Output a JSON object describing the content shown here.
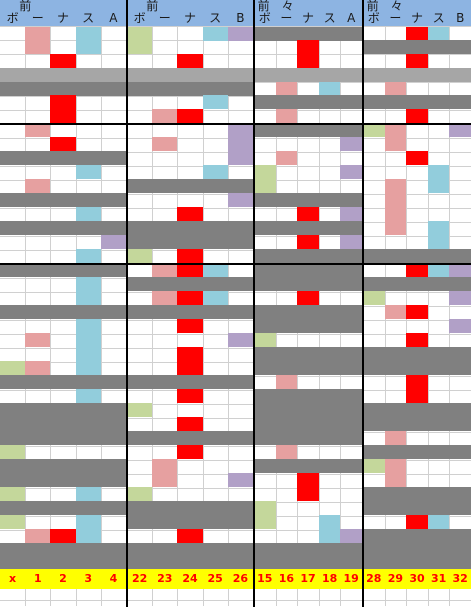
{
  "colors": {
    "gray": "#808080",
    "lightgray": "#a6a6a6",
    "red": "#ff0000",
    "pink": "#e6a0a0",
    "blue": "#92cddc",
    "purple": "#b1a0c7",
    "green": "#c4d79b",
    "header": "#8db4e2",
    "footer": "#ffff00"
  },
  "blocks": [
    {
      "title": "前",
      "letters": [
        "ボ",
        "ー",
        "ナ",
        "ス",
        "A"
      ],
      "footer": [
        "x",
        "1",
        "2",
        "3",
        "4"
      ],
      "cells": [
        [
          27,
          1,
          1,
          "pink"
        ],
        [
          27,
          3,
          1,
          "blue"
        ],
        [
          40,
          1,
          1,
          "pink"
        ],
        [
          40,
          3,
          1,
          "blue"
        ],
        [
          54,
          2,
          1,
          "red"
        ],
        [
          68,
          0,
          5,
          "lightgray"
        ],
        [
          82,
          0,
          5,
          "gray"
        ],
        [
          95,
          2,
          1,
          "red"
        ],
        [
          109,
          2,
          1,
          "red"
        ],
        [
          123,
          1,
          1,
          "pink"
        ],
        [
          137,
          2,
          1,
          "red"
        ],
        [
          151,
          0,
          5,
          "gray"
        ],
        [
          165,
          3,
          1,
          "blue"
        ],
        [
          179,
          1,
          1,
          "pink"
        ],
        [
          193,
          0,
          5,
          "gray"
        ],
        [
          207,
          3,
          1,
          "blue"
        ],
        [
          221,
          0,
          5,
          "gray"
        ],
        [
          235,
          4,
          1,
          "purple"
        ],
        [
          249,
          3,
          1,
          "blue"
        ],
        [
          263,
          0,
          5,
          "gray"
        ],
        [
          277,
          3,
          1,
          "blue"
        ],
        [
          291,
          3,
          1,
          "blue"
        ],
        [
          305,
          0,
          5,
          "gray"
        ],
        [
          319,
          3,
          1,
          "blue"
        ],
        [
          333,
          1,
          1,
          "pink"
        ],
        [
          333,
          3,
          1,
          "blue"
        ],
        [
          347,
          3,
          1,
          "blue"
        ],
        [
          361,
          0,
          1,
          "green"
        ],
        [
          361,
          1,
          1,
          "pink"
        ],
        [
          361,
          3,
          1,
          "blue"
        ],
        [
          375,
          0,
          5,
          "gray"
        ],
        [
          389,
          3,
          1,
          "blue"
        ],
        [
          403,
          0,
          5,
          "gray"
        ],
        [
          417,
          0,
          5,
          "gray"
        ],
        [
          431,
          0,
          5,
          "gray"
        ],
        [
          445,
          0,
          1,
          "green"
        ],
        [
          459,
          0,
          5,
          "gray"
        ],
        [
          473,
          0,
          5,
          "gray"
        ],
        [
          487,
          0,
          1,
          "green"
        ],
        [
          487,
          3,
          1,
          "blue"
        ],
        [
          501,
          0,
          5,
          "gray"
        ],
        [
          515,
          0,
          1,
          "green"
        ],
        [
          515,
          3,
          1,
          "blue"
        ],
        [
          529,
          1,
          1,
          "pink"
        ],
        [
          529,
          2,
          1,
          "red"
        ],
        [
          529,
          3,
          1,
          "blue"
        ],
        [
          543,
          0,
          5,
          "gray"
        ],
        [
          557,
          0,
          5,
          "gray"
        ]
      ]
    },
    {
      "title": "前",
      "letters": [
        "ボ",
        "ー",
        "ナ",
        "ス",
        "B"
      ],
      "footer": [
        "22",
        "23",
        "24",
        "25",
        "26"
      ],
      "cells": [
        [
          27,
          0,
          1,
          "green"
        ],
        [
          27,
          3,
          1,
          "blue"
        ],
        [
          27,
          4,
          1,
          "purple"
        ],
        [
          40,
          0,
          1,
          "green"
        ],
        [
          54,
          2,
          1,
          "red"
        ],
        [
          68,
          0,
          5,
          "lightgray"
        ],
        [
          82,
          0,
          5,
          "gray"
        ],
        [
          95,
          3,
          1,
          "blue"
        ],
        [
          109,
          1,
          1,
          "pink"
        ],
        [
          109,
          2,
          1,
          "red"
        ],
        [
          123,
          4,
          1,
          "purple"
        ],
        [
          137,
          1,
          1,
          "pink"
        ],
        [
          137,
          4,
          1,
          "purple"
        ],
        [
          151,
          4,
          1,
          "purple"
        ],
        [
          165,
          3,
          1,
          "blue"
        ],
        [
          179,
          0,
          5,
          "gray"
        ],
        [
          193,
          4,
          1,
          "purple"
        ],
        [
          207,
          2,
          1,
          "red"
        ],
        [
          221,
          0,
          5,
          "gray"
        ],
        [
          235,
          0,
          5,
          "gray"
        ],
        [
          249,
          0,
          1,
          "green"
        ],
        [
          249,
          2,
          1,
          "red"
        ],
        [
          263,
          1,
          1,
          "pink"
        ],
        [
          263,
          2,
          1,
          "red"
        ],
        [
          263,
          3,
          1,
          "blue"
        ],
        [
          277,
          0,
          5,
          "gray"
        ],
        [
          291,
          1,
          1,
          "pink"
        ],
        [
          291,
          2,
          1,
          "red"
        ],
        [
          291,
          3,
          1,
          "blue"
        ],
        [
          305,
          0,
          5,
          "gray"
        ],
        [
          319,
          2,
          1,
          "red"
        ],
        [
          333,
          4,
          1,
          "purple"
        ],
        [
          347,
          2,
          1,
          "red"
        ],
        [
          361,
          2,
          1,
          "red"
        ],
        [
          375,
          0,
          5,
          "gray"
        ],
        [
          389,
          2,
          1,
          "red"
        ],
        [
          403,
          0,
          1,
          "green"
        ],
        [
          417,
          2,
          1,
          "red"
        ],
        [
          431,
          0,
          5,
          "gray"
        ],
        [
          445,
          2,
          1,
          "red"
        ],
        [
          459,
          1,
          1,
          "pink"
        ],
        [
          473,
          1,
          1,
          "pink"
        ],
        [
          473,
          4,
          1,
          "purple"
        ],
        [
          487,
          0,
          1,
          "green"
        ],
        [
          501,
          0,
          5,
          "gray"
        ],
        [
          515,
          0,
          5,
          "gray"
        ],
        [
          529,
          2,
          1,
          "red"
        ],
        [
          543,
          0,
          5,
          "gray"
        ],
        [
          557,
          0,
          5,
          "gray"
        ]
      ]
    },
    {
      "title": "前　々",
      "letters": [
        "ボ",
        "ー",
        "ナ",
        "ス",
        "A"
      ],
      "footer": [
        "15",
        "16",
        "17",
        "18",
        "19"
      ],
      "cells": [
        [
          27,
          0,
          5,
          "gray"
        ],
        [
          40,
          2,
          1,
          "red"
        ],
        [
          54,
          2,
          1,
          "red"
        ],
        [
          68,
          0,
          5,
          "lightgray"
        ],
        [
          82,
          1,
          1,
          "pink"
        ],
        [
          82,
          3,
          1,
          "blue"
        ],
        [
          95,
          0,
          5,
          "gray"
        ],
        [
          109,
          1,
          1,
          "pink"
        ],
        [
          123,
          0,
          5,
          "gray"
        ],
        [
          137,
          4,
          1,
          "purple"
        ],
        [
          151,
          1,
          1,
          "pink"
        ],
        [
          165,
          0,
          1,
          "green"
        ],
        [
          165,
          4,
          1,
          "purple"
        ],
        [
          179,
          0,
          1,
          "green"
        ],
        [
          193,
          0,
          5,
          "gray"
        ],
        [
          207,
          2,
          1,
          "red"
        ],
        [
          207,
          4,
          1,
          "purple"
        ],
        [
          221,
          0,
          5,
          "gray"
        ],
        [
          235,
          2,
          1,
          "red"
        ],
        [
          235,
          4,
          1,
          "purple"
        ],
        [
          249,
          0,
          5,
          "gray"
        ],
        [
          263,
          0,
          5,
          "gray"
        ],
        [
          277,
          0,
          5,
          "gray"
        ],
        [
          291,
          2,
          1,
          "red"
        ],
        [
          305,
          0,
          5,
          "gray"
        ],
        [
          319,
          0,
          5,
          "gray"
        ],
        [
          333,
          0,
          1,
          "green"
        ],
        [
          347,
          0,
          5,
          "gray"
        ],
        [
          361,
          0,
          5,
          "gray"
        ],
        [
          375,
          1,
          1,
          "pink"
        ],
        [
          389,
          0,
          5,
          "gray"
        ],
        [
          403,
          0,
          5,
          "gray"
        ],
        [
          417,
          0,
          5,
          "gray"
        ],
        [
          431,
          0,
          5,
          "gray"
        ],
        [
          445,
          1,
          1,
          "pink"
        ],
        [
          459,
          0,
          5,
          "gray"
        ],
        [
          473,
          2,
          1,
          "red"
        ],
        [
          487,
          2,
          1,
          "red"
        ],
        [
          501,
          0,
          1,
          "green"
        ],
        [
          515,
          0,
          1,
          "green"
        ],
        [
          515,
          3,
          1,
          "blue"
        ],
        [
          529,
          3,
          1,
          "blue"
        ],
        [
          529,
          4,
          1,
          "purple"
        ],
        [
          543,
          0,
          5,
          "gray"
        ],
        [
          557,
          0,
          5,
          "gray"
        ]
      ]
    },
    {
      "title": "前　々",
      "letters": [
        "ボ",
        "ー",
        "ナ",
        "ス",
        "B"
      ],
      "footer": [
        "28",
        "29",
        "30",
        "31",
        "32"
      ],
      "cells": [
        [
          27,
          2,
          1,
          "red"
        ],
        [
          27,
          3,
          1,
          "blue"
        ],
        [
          40,
          0,
          5,
          "gray"
        ],
        [
          54,
          2,
          1,
          "red"
        ],
        [
          68,
          0,
          5,
          "lightgray"
        ],
        [
          82,
          1,
          1,
          "pink"
        ],
        [
          95,
          0,
          5,
          "gray"
        ],
        [
          109,
          2,
          1,
          "red"
        ],
        [
          123,
          0,
          1,
          "green"
        ],
        [
          123,
          1,
          1,
          "pink"
        ],
        [
          123,
          4,
          1,
          "purple"
        ],
        [
          137,
          1,
          1,
          "pink"
        ],
        [
          151,
          2,
          1,
          "red"
        ],
        [
          165,
          3,
          1,
          "blue"
        ],
        [
          179,
          1,
          1,
          "pink"
        ],
        [
          179,
          3,
          1,
          "blue"
        ],
        [
          193,
          1,
          1,
          "pink"
        ],
        [
          207,
          1,
          1,
          "pink"
        ],
        [
          221,
          1,
          1,
          "pink"
        ],
        [
          221,
          3,
          1,
          "blue"
        ],
        [
          235,
          3,
          1,
          "blue"
        ],
        [
          249,
          0,
          5,
          "gray"
        ],
        [
          263,
          2,
          1,
          "red"
        ],
        [
          263,
          3,
          1,
          "blue"
        ],
        [
          263,
          4,
          1,
          "purple"
        ],
        [
          277,
          0,
          5,
          "gray"
        ],
        [
          291,
          0,
          1,
          "green"
        ],
        [
          291,
          4,
          1,
          "purple"
        ],
        [
          305,
          1,
          1,
          "pink"
        ],
        [
          305,
          2,
          1,
          "red"
        ],
        [
          319,
          4,
          1,
          "purple"
        ],
        [
          333,
          2,
          1,
          "red"
        ],
        [
          347,
          0,
          5,
          "gray"
        ],
        [
          361,
          0,
          5,
          "gray"
        ],
        [
          375,
          2,
          1,
          "red"
        ],
        [
          389,
          2,
          1,
          "red"
        ],
        [
          403,
          0,
          5,
          "gray"
        ],
        [
          417,
          0,
          5,
          "gray"
        ],
        [
          431,
          1,
          1,
          "pink"
        ],
        [
          445,
          0,
          5,
          "gray"
        ],
        [
          459,
          0,
          1,
          "green"
        ],
        [
          459,
          1,
          1,
          "pink"
        ],
        [
          473,
          1,
          1,
          "pink"
        ],
        [
          487,
          0,
          5,
          "gray"
        ],
        [
          501,
          0,
          5,
          "gray"
        ],
        [
          515,
          2,
          1,
          "red"
        ],
        [
          515,
          3,
          1,
          "blue"
        ],
        [
          529,
          0,
          5,
          "gray"
        ],
        [
          543,
          0,
          5,
          "gray"
        ],
        [
          557,
          0,
          5,
          "gray"
        ]
      ]
    }
  ]
}
